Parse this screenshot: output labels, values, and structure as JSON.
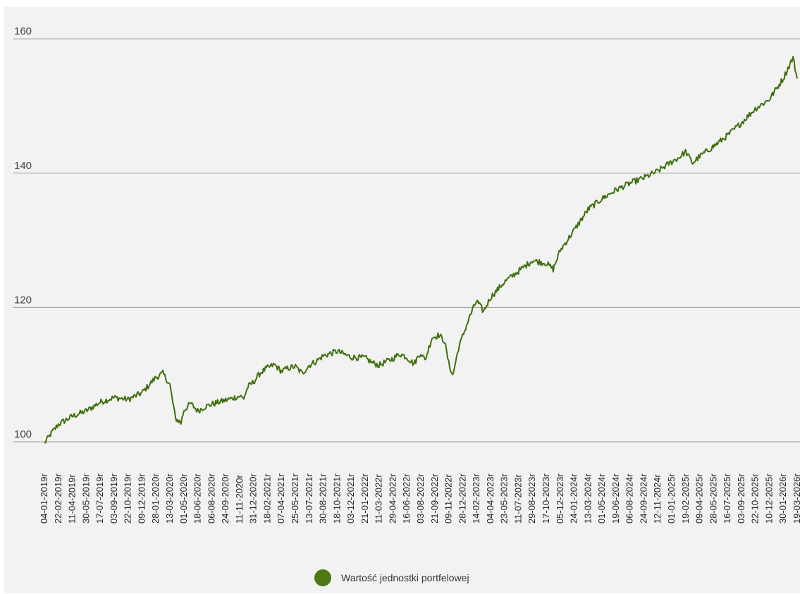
{
  "chart_data": {
    "type": "line",
    "title": "",
    "xlabel": "",
    "ylabel": "",
    "ylim": [
      93.5,
      164
    ],
    "yticks": [
      100,
      120,
      140,
      160
    ],
    "grid": true,
    "legend_position": "bottom",
    "colors": {
      "line": "#3f6f0c",
      "legend": "#4a7a12",
      "grid": "#9a9a9a",
      "background": "#f2f2f2"
    },
    "x_tick_labels": [
      "04-01-2019r",
      "22-02-2019r",
      "11-04-2019r",
      "30-05-2019r",
      "17-07-2019r",
      "03-09-2019r",
      "22-10-2019r",
      "09-12-2019r",
      "28-01-2020r",
      "13-03-2020r",
      "01-05-2020r",
      "18-06-2020r",
      "06-08-2020r",
      "24-09-2020r",
      "11-11-2020r",
      "31-12-2020r",
      "18-02-2021r",
      "07-04-2021r",
      "25-05-2021r",
      "13-07-2021r",
      "30-08-2021r",
      "18-10-2021r",
      "03-12-2021r",
      "21-01-2022r",
      "11-03-2022r",
      "29-04-2022r",
      "16-06-2022r",
      "03-08-2022r",
      "21-09-2022r",
      "09-11-2022r",
      "28-12-2022r",
      "14-02-2023r",
      "04-04-2023r",
      "23-05-2023r",
      "11-07-2023r",
      "29-08-2023r",
      "17-10-2023r",
      "05-12-2023r",
      "24-01-2024r",
      "13-03-2024r",
      "01-05-2024r",
      "19-06-2024r",
      "06-08-2024r",
      "24-09-2024r",
      "12-11-2024r",
      "01-01-2025r",
      "19-02-2025r",
      "09-04-2025r",
      "28-05-2025r",
      "16-07-2025r",
      "03-09-2025r",
      "22-10-2025r",
      "10-12-2025r",
      "30-01-2026r",
      "19-03-2026r"
    ],
    "series": [
      {
        "name": "Wartość jednostki portfelowej",
        "x": [
          0,
          0.5,
          1,
          2,
          3,
          4,
          5,
          6,
          7,
          8,
          8.5,
          9,
          9.4,
          9.8,
          10,
          10.5,
          11,
          11.5,
          12,
          13,
          14,
          14.3,
          14.6,
          15,
          15.5,
          16,
          16.5,
          17,
          17.5,
          18,
          18.5,
          19,
          19.5,
          20,
          21,
          22,
          23,
          23.5,
          24,
          25,
          25.5,
          26,
          26.5,
          27,
          27.3,
          27.8,
          28.3,
          28.7,
          29,
          29.3,
          29.7,
          30,
          30.5,
          31,
          31.5,
          32,
          33,
          34,
          35,
          36,
          36.5,
          37,
          38,
          39,
          40,
          41,
          42,
          43,
          44,
          45,
          45.5,
          46,
          46.5,
          47,
          48,
          49,
          50,
          51,
          51.5,
          52,
          53,
          53.7,
          54
        ],
        "values": [
          99.8,
          101.3,
          102.6,
          103.8,
          104.6,
          105.9,
          106.6,
          106.3,
          107.3,
          109.6,
          110.2,
          108.5,
          103.5,
          102.8,
          104.7,
          105.7,
          104.6,
          105.2,
          105.6,
          106.2,
          106.8,
          106.5,
          108.2,
          108.9,
          110.3,
          111.0,
          111.5,
          110.5,
          111.0,
          111.2,
          110.2,
          111.4,
          112.0,
          112.8,
          113.5,
          112.6,
          112.5,
          111.8,
          111.4,
          112.4,
          113.1,
          112.6,
          111.6,
          113.3,
          112.1,
          115.5,
          115.9,
          115.0,
          111.7,
          109.9,
          113.9,
          115.7,
          118.6,
          121.0,
          119.4,
          121.5,
          123.8,
          125.4,
          127.0,
          126.6,
          125.7,
          128.5,
          131.5,
          134.6,
          136.2,
          137.5,
          138.5,
          139.3,
          140.3,
          141.7,
          142.3,
          143.2,
          141.5,
          142.5,
          144.0,
          145.6,
          147.5,
          149.6,
          150.3,
          151.0,
          154.1,
          157.2,
          154.1
        ]
      }
    ]
  }
}
